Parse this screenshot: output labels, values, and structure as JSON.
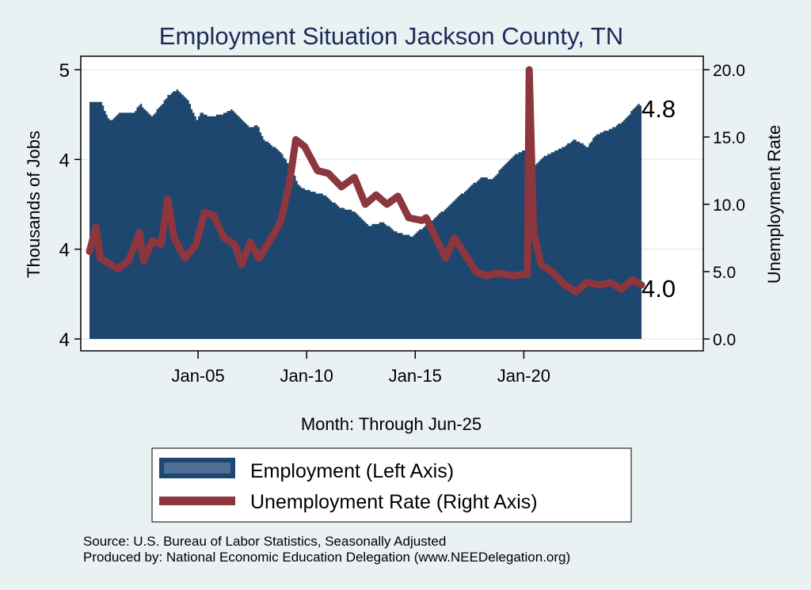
{
  "chart_data": {
    "type": "area+line",
    "title": "Employment Situation Jackson  County, TN",
    "xlabel": "Month: Through Jun-25",
    "ylabel_left": "Thousands of Jobs",
    "ylabel_right": "Unemployment Rate",
    "x_range": [
      2000.0,
      2025.42
    ],
    "x_ticks": [
      {
        "value": 2005.0,
        "label": "Jan-05"
      },
      {
        "value": 2010.0,
        "label": "Jan-10"
      },
      {
        "value": 2015.0,
        "label": "Jan-15"
      },
      {
        "value": 2020.0,
        "label": "Jan-20"
      }
    ],
    "y_left": {
      "range": [
        3.5,
        5.0
      ],
      "ticks": [
        {
          "value": 5.0,
          "label": "5"
        },
        {
          "value": 4.5,
          "label": "4"
        },
        {
          "value": 4.0,
          "label": "4"
        },
        {
          "value": 3.5,
          "label": "4"
        }
      ]
    },
    "y_right": {
      "range": [
        0,
        20
      ],
      "ticks": [
        {
          "value": 20,
          "label": "20.0"
        },
        {
          "value": 15,
          "label": "15.0"
        },
        {
          "value": 10,
          "label": "10.0"
        },
        {
          "value": 5,
          "label": "5.0"
        },
        {
          "value": 0,
          "label": "0.0"
        }
      ]
    },
    "grid": true,
    "series": [
      {
        "name": "Employment (Left Axis)",
        "axis": "left",
        "kind": "area",
        "color": "#1d476f",
        "end_label": "4.8",
        "points": [
          [
            2000.0,
            4.82
          ],
          [
            2000.5,
            4.82
          ],
          [
            2000.8,
            4.73
          ],
          [
            2001.0,
            4.72
          ],
          [
            2001.3,
            4.76
          ],
          [
            2002.0,
            4.76
          ],
          [
            2002.3,
            4.81
          ],
          [
            2002.8,
            4.74
          ],
          [
            2003.2,
            4.79
          ],
          [
            2003.6,
            4.86
          ],
          [
            2004.0,
            4.89
          ],
          [
            2004.5,
            4.83
          ],
          [
            2004.9,
            4.72
          ],
          [
            2005.1,
            4.76
          ],
          [
            2005.5,
            4.74
          ],
          [
            2006.0,
            4.75
          ],
          [
            2006.5,
            4.78
          ],
          [
            2007.0,
            4.72
          ],
          [
            2007.3,
            4.68
          ],
          [
            2007.7,
            4.69
          ],
          [
            2008.0,
            4.61
          ],
          [
            2008.7,
            4.55
          ],
          [
            2009.3,
            4.44
          ],
          [
            2009.6,
            4.35
          ],
          [
            2010.0,
            4.33
          ],
          [
            2010.8,
            4.3
          ],
          [
            2011.5,
            4.23
          ],
          [
            2012.2,
            4.21
          ],
          [
            2012.8,
            4.13
          ],
          [
            2013.5,
            4.15
          ],
          [
            2014.0,
            4.1
          ],
          [
            2014.8,
            4.07
          ],
          [
            2015.2,
            4.11
          ],
          [
            2015.8,
            4.17
          ],
          [
            2016.5,
            4.24
          ],
          [
            2017.3,
            4.33
          ],
          [
            2018.0,
            4.4
          ],
          [
            2018.5,
            4.39
          ],
          [
            2019.0,
            4.46
          ],
          [
            2019.6,
            4.53
          ],
          [
            2020.1,
            4.56
          ],
          [
            2020.3,
            4.45
          ],
          [
            2020.8,
            4.51
          ],
          [
            2021.5,
            4.55
          ],
          [
            2022.3,
            4.61
          ],
          [
            2022.9,
            4.57
          ],
          [
            2023.3,
            4.64
          ],
          [
            2024.0,
            4.67
          ],
          [
            2024.6,
            4.72
          ],
          [
            2025.2,
            4.81
          ],
          [
            2025.42,
            4.8
          ]
        ]
      },
      {
        "name": "Unemployment Rate (Right Axis)",
        "axis": "right",
        "kind": "line",
        "color": "#8d363e",
        "end_label": "4.0",
        "points": [
          [
            2000.0,
            6.5
          ],
          [
            2000.3,
            8.3
          ],
          [
            2000.5,
            6.0
          ],
          [
            2001.3,
            5.2
          ],
          [
            2001.8,
            5.8
          ],
          [
            2002.3,
            7.9
          ],
          [
            2002.5,
            5.8
          ],
          [
            2002.9,
            7.3
          ],
          [
            2003.3,
            7.0
          ],
          [
            2003.6,
            10.4
          ],
          [
            2003.9,
            7.5
          ],
          [
            2004.4,
            6.0
          ],
          [
            2004.9,
            7.0
          ],
          [
            2005.3,
            9.4
          ],
          [
            2005.7,
            9.2
          ],
          [
            2006.2,
            7.5
          ],
          [
            2006.7,
            7.0
          ],
          [
            2007.0,
            5.5
          ],
          [
            2007.4,
            7.2
          ],
          [
            2007.8,
            6.0
          ],
          [
            2008.3,
            7.3
          ],
          [
            2008.8,
            8.7
          ],
          [
            2009.2,
            11.5
          ],
          [
            2009.5,
            14.8
          ],
          [
            2009.9,
            14.3
          ],
          [
            2010.5,
            12.5
          ],
          [
            2011.0,
            12.3
          ],
          [
            2011.6,
            11.3
          ],
          [
            2012.2,
            12.0
          ],
          [
            2012.7,
            10.0
          ],
          [
            2013.2,
            10.7
          ],
          [
            2013.7,
            10.0
          ],
          [
            2014.2,
            10.6
          ],
          [
            2014.7,
            9.0
          ],
          [
            2015.3,
            8.8
          ],
          [
            2015.5,
            9.0
          ],
          [
            2016.1,
            7.0
          ],
          [
            2016.4,
            6.0
          ],
          [
            2016.8,
            7.5
          ],
          [
            2017.2,
            6.5
          ],
          [
            2017.8,
            5.0
          ],
          [
            2018.3,
            4.7
          ],
          [
            2018.8,
            4.9
          ],
          [
            2019.5,
            4.7
          ],
          [
            2020.0,
            4.8
          ],
          [
            2020.17,
            4.8
          ],
          [
            2020.25,
            20.0
          ],
          [
            2020.45,
            8.0
          ],
          [
            2020.8,
            5.5
          ],
          [
            2021.3,
            5.0
          ],
          [
            2021.9,
            4.0
          ],
          [
            2022.4,
            3.5
          ],
          [
            2022.9,
            4.2
          ],
          [
            2023.5,
            4.0
          ],
          [
            2024.0,
            4.2
          ],
          [
            2024.5,
            3.7
          ],
          [
            2025.0,
            4.4
          ],
          [
            2025.42,
            4.0
          ]
        ]
      }
    ],
    "legend": {
      "placement": "bottom",
      "entries": [
        {
          "label": "Employment (Left Axis)",
          "color": "#1d476f",
          "inner_color": "#4d6f91"
        },
        {
          "label": "Unemployment Rate (Right Axis)",
          "color": "#8d363e"
        }
      ]
    },
    "notes": [
      "Source: U.S. Bureau of Labor Statistics, Seasonally Adjusted",
      "Produced by: National Economic Education Delegation (www.NEEDelegation.org)"
    ]
  }
}
